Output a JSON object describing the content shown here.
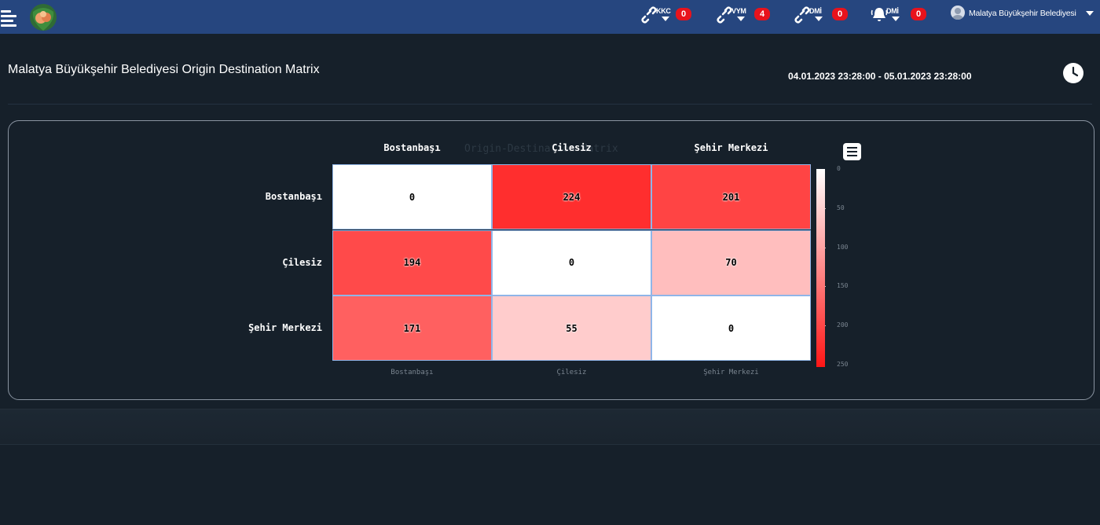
{
  "header": {
    "alerts": [
      {
        "tag": "KKC",
        "count": "0",
        "icon": "link-alert-icon"
      },
      {
        "tag": "VYM",
        "count": "4",
        "icon": "link-alert-icon"
      },
      {
        "tag": "DMİ",
        "count": "0",
        "icon": "link-alert-icon"
      },
      {
        "tag": "DMİ",
        "count": "0",
        "icon": "bell-icon"
      }
    ],
    "user_name": "Malatya Büyükşehir Belediyesi"
  },
  "page": {
    "title": "Malatya Büyükşehir Belediyesi Origin Destination Matrix",
    "date_range": "04.01.2023 23:28:00 - 05.01.2023 23:28:00"
  },
  "colors": {
    "header_bg": "#26467f",
    "page_bg": "#16202a",
    "badge": "#e8131c",
    "scale_low": "#ffffff",
    "scale_high": "#ff1616"
  },
  "chart_data": {
    "type": "heatmap",
    "title": "Origin-Destination Matrix",
    "columns": [
      "Bostanbaşı",
      "Çilesiz",
      "Şehir Merkezi"
    ],
    "rows": [
      "Bostanbaşı",
      "Çilesiz",
      "Şehir Merkezi"
    ],
    "values": [
      [
        0,
        224,
        201
      ],
      [
        194,
        0,
        70
      ],
      [
        171,
        55,
        0
      ]
    ],
    "scale_range": [
      0,
      250
    ],
    "scale_ticks": [
      "0",
      "50",
      "100",
      "150",
      "200",
      "250"
    ],
    "legend": "right"
  }
}
